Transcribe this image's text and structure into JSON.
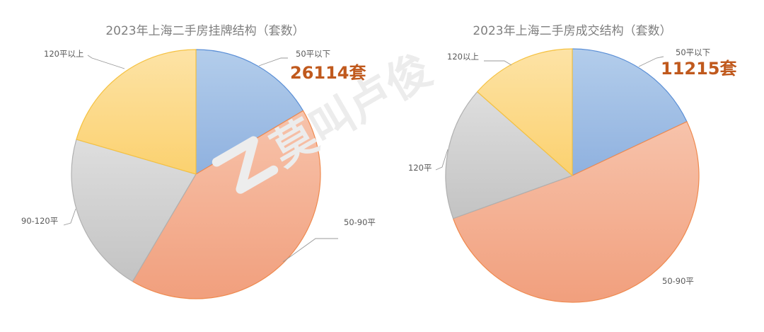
{
  "watermark": "莫叫卢俊",
  "chart_data": [
    {
      "type": "pie",
      "title": "2023年上海二手房挂牌结构（套数）",
      "start_angle_deg": 0,
      "direction": "clockwise",
      "slices": [
        {
          "label": "50平以下",
          "value": 16.5,
          "highlight": "26114套",
          "color_top": "#b3cdeb",
          "color_bottom": "#8fb1df",
          "edge": "#5b8fd6"
        },
        {
          "label": "50-90平",
          "value": 42.0,
          "color_top": "#f7c3ab",
          "color_bottom": "#f19f7d",
          "edge": "#ef8a4f"
        },
        {
          "label": "90-120平",
          "value": 21.0,
          "color_top": "#dedede",
          "color_bottom": "#c3c3c3",
          "edge": "#b0b0b0"
        },
        {
          "label": "120平以上",
          "value": 20.5,
          "color_top": "#fde3a6",
          "color_bottom": "#fbd16f",
          "edge": "#f5c242"
        }
      ]
    },
    {
      "type": "pie",
      "title": "2023年上海二手房成交结构（套数）",
      "start_angle_deg": 0,
      "direction": "clockwise",
      "slices": [
        {
          "label": "50平以下",
          "value": 18.0,
          "highlight": "11215套",
          "color_top": "#b3cdeb",
          "color_bottom": "#8fb1df",
          "edge": "#5b8fd6"
        },
        {
          "label": "50-90平",
          "value": 51.5,
          "color_top": "#f7c3ab",
          "color_bottom": "#f19f7d",
          "edge": "#ef8a4f"
        },
        {
          "label": "120平",
          "value": 17.0,
          "color_top": "#dedede",
          "color_bottom": "#c3c3c3",
          "edge": "#b0b0b0"
        },
        {
          "label": "120以上",
          "value": 13.5,
          "color_top": "#fde3a6",
          "color_bottom": "#fbd16f",
          "edge": "#f5c242"
        }
      ]
    }
  ]
}
